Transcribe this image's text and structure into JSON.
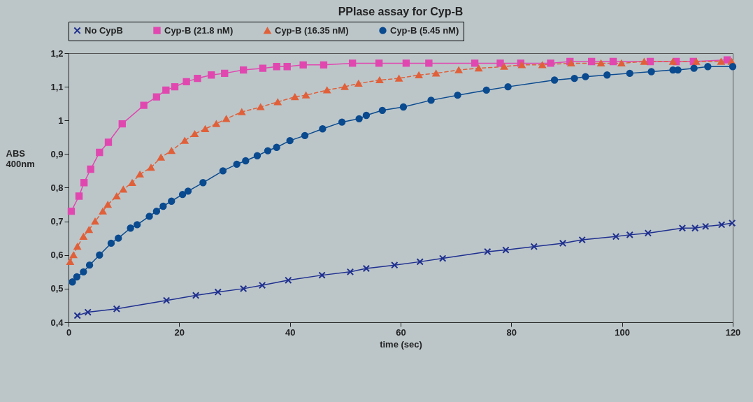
{
  "chart_data": {
    "type": "line",
    "title": "PPIase assay for Cyp-B",
    "xlabel": "time (sec)",
    "ylabel": "ABS 400nm",
    "xlim": [
      0,
      120
    ],
    "xticks": [
      0,
      20,
      40,
      60,
      80,
      100,
      120
    ],
    "ylim": [
      0.4,
      1.2
    ],
    "yticks": [
      {
        "value": 0.4,
        "label": "0,4"
      },
      {
        "value": 0.5,
        "label": "0,5"
      },
      {
        "value": 0.6,
        "label": "0,6"
      },
      {
        "value": 0.7,
        "label": "0,7"
      },
      {
        "value": 0.8,
        "label": "0,8"
      },
      {
        "value": 0.9,
        "label": "0,9"
      },
      1,
      {
        "value": 1.1,
        "label": "1,1"
      },
      {
        "value": 1.2,
        "label": "1,2"
      }
    ],
    "grid": false,
    "legend": "top",
    "series": [
      {
        "name": "No CypB",
        "color": "#1f2f8f",
        "marker": "cross",
        "line_style": "solid",
        "x": [
          1.6,
          3.5,
          8.7,
          17.7,
          23,
          27,
          31.6,
          35,
          39.7,
          45.8,
          50.9,
          53.8,
          58.9,
          63.5,
          67.6,
          75.7,
          79,
          84.1,
          89.3,
          92.8,
          98.9,
          101.4,
          104.7,
          110.9,
          113.2,
          115.1,
          118,
          119.9
        ],
        "values": [
          0.42,
          0.43,
          0.44,
          0.465,
          0.48,
          0.49,
          0.5,
          0.51,
          0.525,
          0.54,
          0.55,
          0.56,
          0.57,
          0.58,
          0.59,
          0.61,
          0.615,
          0.625,
          0.635,
          0.645,
          0.655,
          0.66,
          0.665,
          0.68,
          0.68,
          0.685,
          0.69,
          0.695
        ]
      },
      {
        "name": "Cyp-B (21.8 nM)",
        "color": "#e048b0",
        "marker": "square",
        "line_style": "solid",
        "x": [
          0.5,
          1.9,
          2.8,
          4,
          5.6,
          7.2,
          9.7,
          13.6,
          15.9,
          17.6,
          19.2,
          21.3,
          23.3,
          25.8,
          28.2,
          31.6,
          35.1,
          37.6,
          39.5,
          42.4,
          46.1,
          51.3,
          56.1,
          61,
          65.1,
          73.4,
          78,
          81.7,
          87.1,
          90.6,
          94.5,
          98.4,
          105.1,
          109.8,
          112.9,
          119
        ],
        "values": [
          0.73,
          0.775,
          0.815,
          0.855,
          0.905,
          0.935,
          0.99,
          1.045,
          1.07,
          1.09,
          1.1,
          1.115,
          1.125,
          1.135,
          1.14,
          1.15,
          1.155,
          1.16,
          1.16,
          1.165,
          1.165,
          1.17,
          1.17,
          1.17,
          1.17,
          1.17,
          1.17,
          1.17,
          1.17,
          1.175,
          1.175,
          1.175,
          1.175,
          1.175,
          1.175,
          1.18
        ]
      },
      {
        "name": "Cyp-B (16.35 nM)",
        "color": "#e0603a",
        "marker": "triangle",
        "line_style": "dashed",
        "x": [
          0.3,
          0.9,
          1.6,
          2.7,
          3.7,
          4.8,
          6.2,
          7.1,
          8.7,
          9.9,
          11.5,
          12.9,
          14.9,
          16.7,
          18.6,
          21,
          22.8,
          24.7,
          26.7,
          28.5,
          31.3,
          34.7,
          37.8,
          40.9,
          42.9,
          46.7,
          49.9,
          52.4,
          56.2,
          59.7,
          63.3,
          66.4,
          70.5,
          74.1,
          78.7,
          81.9,
          85.6,
          90.8,
          96.2,
          99.9,
          104,
          109.2,
          113.4,
          117.9,
          119.8
        ],
        "values": [
          0.58,
          0.6,
          0.625,
          0.655,
          0.675,
          0.7,
          0.73,
          0.75,
          0.775,
          0.795,
          0.815,
          0.84,
          0.86,
          0.89,
          0.91,
          0.94,
          0.96,
          0.975,
          0.99,
          1.005,
          1.025,
          1.04,
          1.055,
          1.07,
          1.075,
          1.09,
          1.1,
          1.11,
          1.12,
          1.125,
          1.135,
          1.14,
          1.15,
          1.155,
          1.16,
          1.165,
          1.165,
          1.17,
          1.17,
          1.17,
          1.175,
          1.175,
          1.175,
          1.175,
          1.175
        ]
      },
      {
        "name": "Cyp-B (5.45 nM)",
        "color": "#0a4a8f",
        "marker": "circle",
        "line_style": "solid",
        "x": [
          0.7,
          1.5,
          2.7,
          3.8,
          5.6,
          7.7,
          9,
          11.2,
          12.4,
          14.6,
          15.9,
          17.1,
          18.6,
          20.6,
          21.6,
          24.3,
          27.9,
          30.4,
          32,
          34.1,
          36,
          37.6,
          40,
          42.7,
          45.9,
          49.4,
          52.5,
          53.8,
          56.7,
          60.5,
          65.5,
          70.3,
          75.5,
          79.4,
          87.8,
          91.4,
          93.4,
          97.3,
          101.4,
          105.3,
          109.2,
          110.1,
          113,
          115.5,
          120
        ],
        "values": [
          0.52,
          0.535,
          0.55,
          0.57,
          0.6,
          0.635,
          0.65,
          0.68,
          0.69,
          0.715,
          0.73,
          0.745,
          0.76,
          0.78,
          0.79,
          0.815,
          0.85,
          0.87,
          0.88,
          0.895,
          0.91,
          0.92,
          0.94,
          0.955,
          0.975,
          0.995,
          1.005,
          1.015,
          1.03,
          1.04,
          1.06,
          1.075,
          1.09,
          1.1,
          1.12,
          1.125,
          1.13,
          1.135,
          1.14,
          1.145,
          1.15,
          1.15,
          1.155,
          1.16,
          1.16
        ]
      }
    ]
  }
}
